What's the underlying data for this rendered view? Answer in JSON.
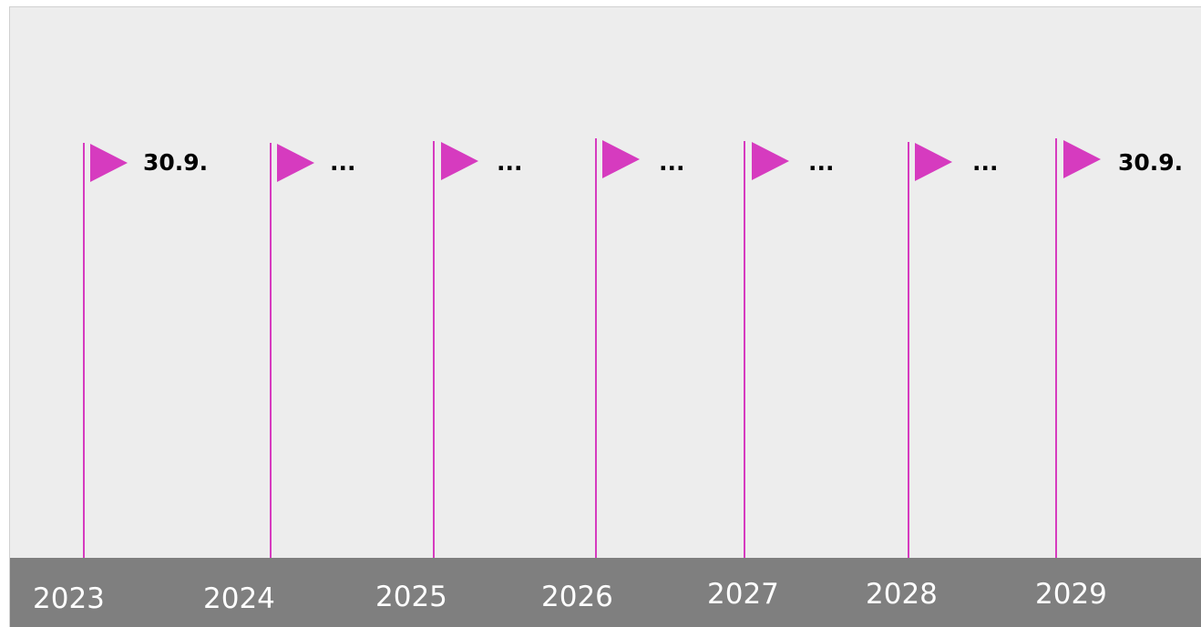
{
  "timeline": {
    "accent_color": "#d63bbf",
    "bar_color": "#7f7f7f",
    "markers": [
      {
        "year": "2023",
        "label": "30.9."
      },
      {
        "year": "2024",
        "label": "..."
      },
      {
        "year": "2025",
        "label": "..."
      },
      {
        "year": "2026",
        "label": "..."
      },
      {
        "year": "2027",
        "label": "..."
      },
      {
        "year": "2028",
        "label": "..."
      },
      {
        "year": "2029",
        "label": "30.9."
      }
    ]
  }
}
